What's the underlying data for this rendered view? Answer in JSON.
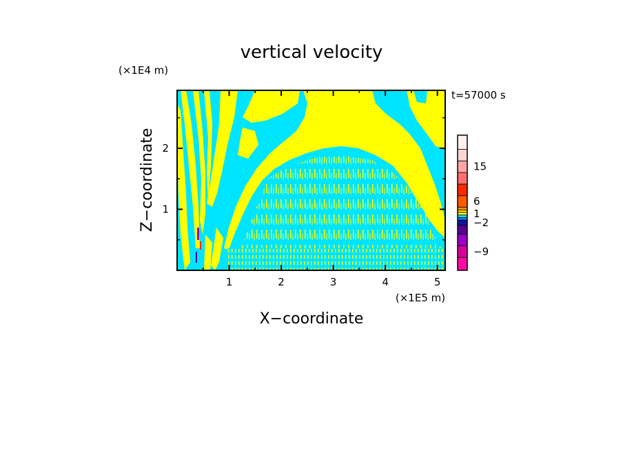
{
  "chart_data": {
    "type": "heatmap",
    "title": "vertical velocity",
    "xlabel": "X−coordinate",
    "ylabel": "Z−coordinate",
    "x_unit": "(×1E5 m)",
    "y_unit": "(×1E4 m)",
    "time_label": "t=57000 s",
    "xlim": [
      0,
      5.15
    ],
    "ylim": [
      0,
      2.95
    ],
    "x_ticks": [
      1,
      2,
      3,
      4,
      5
    ],
    "x_tick_labels": [
      "1",
      "2",
      "3",
      "4",
      "5"
    ],
    "y_ticks": [
      1,
      2
    ],
    "y_tick_labels": [
      "1",
      "2"
    ],
    "colorbar": {
      "levels_colors": [
        "#ff0aa6",
        "#d6009a",
        "#9a00c8",
        "#5a0090",
        "#0b1a9c",
        "#1a70ff",
        "#00e5ff",
        "#ffff00",
        "#ffd400",
        "#ff9a00",
        "#ff5a00",
        "#ff2a00",
        "#ff6f6f",
        "#ffa6a6",
        "#ffd6d6",
        "#fff0f0"
      ],
      "tick_values": [
        -9,
        -2,
        1,
        6,
        15
      ],
      "tick_labels": [
        "−9",
        "−2",
        "1",
        "6",
        "15"
      ]
    },
    "field_description_colors": {
      "negative": "#00e5ff",
      "positive": "#ffff00"
    }
  }
}
